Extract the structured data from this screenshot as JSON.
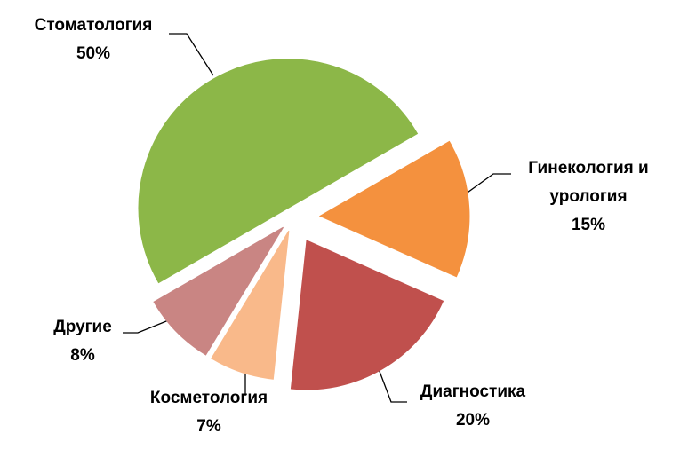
{
  "chart_data": {
    "type": "pie",
    "categories": [
      "Стоматология",
      "Гинекология и урология",
      "Диагностика",
      "Косметология",
      "Другие"
    ],
    "values": [
      50,
      15,
      20,
      7,
      8
    ],
    "value_labels": [
      "50%",
      "15%",
      "20%",
      "7%",
      "8%"
    ],
    "colors": [
      "#8cb748",
      "#f4913e",
      "#c0504d",
      "#f9b98a",
      "#c98583"
    ]
  }
}
